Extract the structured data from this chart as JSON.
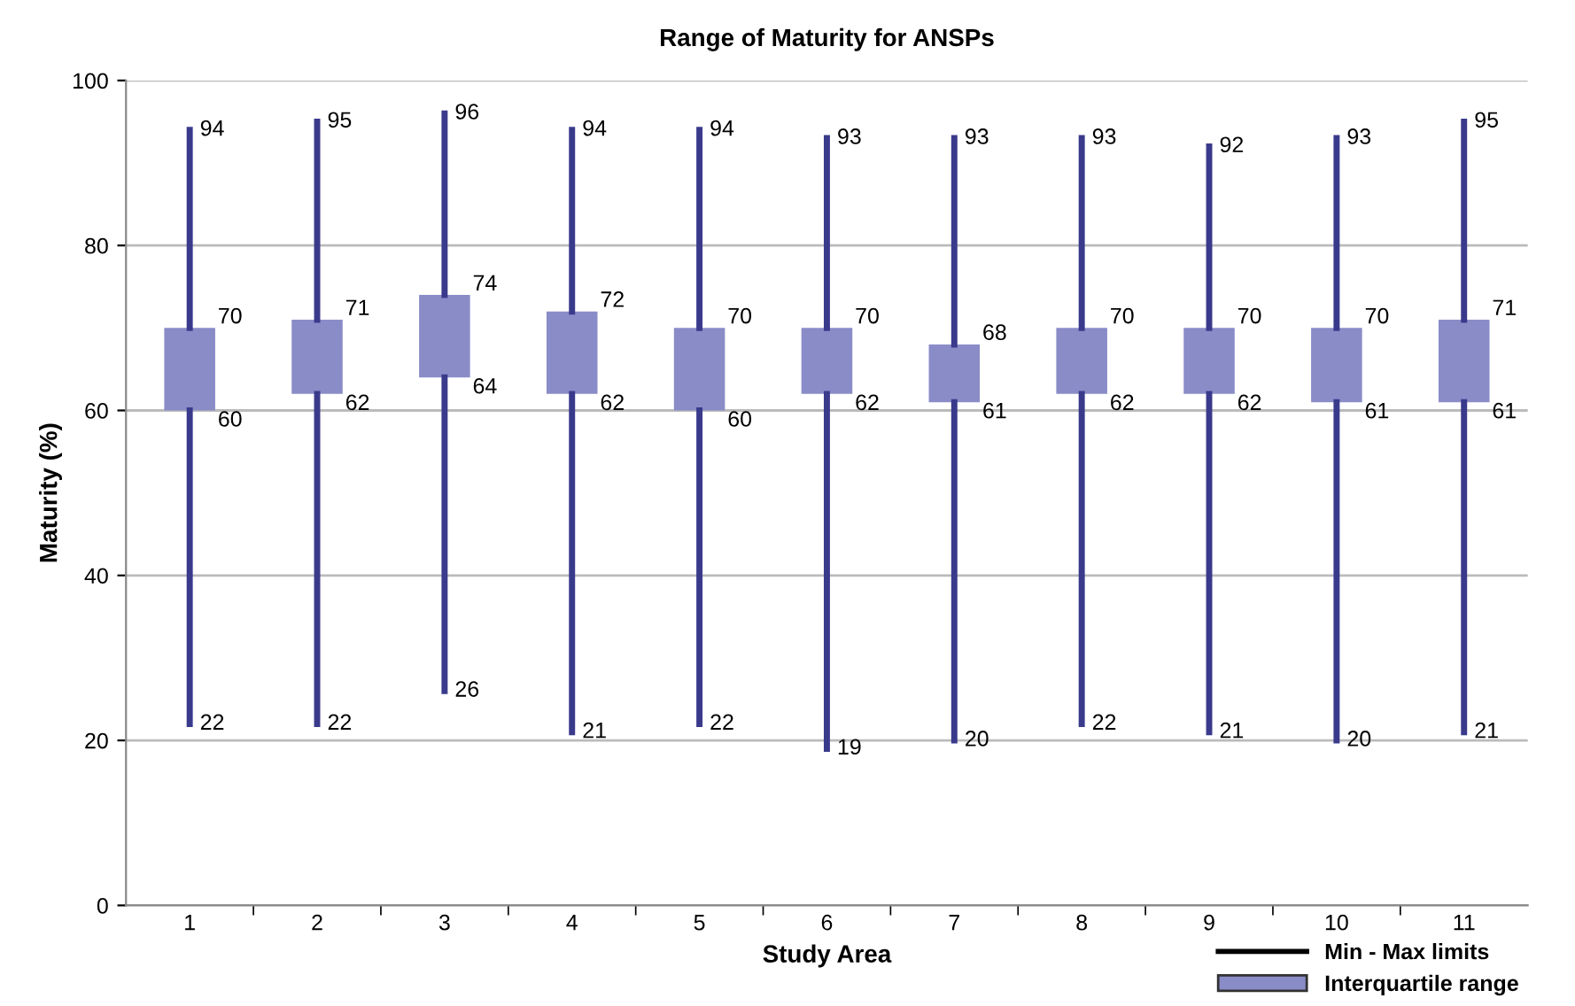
{
  "chart_data": {
    "type": "box",
    "title": "Range of Maturity for ANSPs",
    "xlabel": "Study Area",
    "ylabel": "Maturity (%)",
    "categories": [
      "1",
      "2",
      "3",
      "4",
      "5",
      "6",
      "7",
      "8",
      "9",
      "10",
      "11"
    ],
    "series": [
      {
        "name": "Interquartile range",
        "color": "#8a8cc8",
        "boxes": [
          {
            "low": 22,
            "q1": 60,
            "q3": 70,
            "high": 94
          },
          {
            "low": 22,
            "q1": 62,
            "q3": 71,
            "high": 95
          },
          {
            "low": 26,
            "q1": 64,
            "q3": 74,
            "high": 96
          },
          {
            "low": 21,
            "q1": 62,
            "q3": 72,
            "high": 94
          },
          {
            "low": 22,
            "q1": 60,
            "q3": 70,
            "high": 94
          },
          {
            "low": 19,
            "q1": 62,
            "q3": 70,
            "high": 93
          },
          {
            "low": 20,
            "q1": 61,
            "q3": 68,
            "high": 93
          },
          {
            "low": 22,
            "q1": 62,
            "q3": 70,
            "high": 93
          },
          {
            "low": 21,
            "q1": 62,
            "q3": 70,
            "high": 92
          },
          {
            "low": 20,
            "q1": 61,
            "q3": 70,
            "high": 93
          },
          {
            "low": 21,
            "q1": 61,
            "q3": 71,
            "high": 95
          }
        ]
      }
    ],
    "annotations": [
      "Min - Max limits",
      {
        "text": "94",
        "x": "1",
        "y": 94
      },
      {
        "text": "70",
        "x": "1",
        "y": 70
      },
      {
        "text": "60",
        "x": "1",
        "y": 60
      },
      {
        "text": "22",
        "x": "1",
        "y": 22
      },
      {
        "text": "95",
        "x": "2",
        "y": 95
      },
      {
        "text": "71",
        "x": "2",
        "y": 71
      },
      {
        "text": "62",
        "x": "2",
        "y": 62
      },
      {
        "text": "22",
        "x": "2",
        "y": 22
      },
      {
        "text": "96",
        "x": "3",
        "y": 96
      },
      {
        "text": "74",
        "x": "3",
        "y": 74
      },
      {
        "text": "64",
        "x": "3",
        "y": 64
      },
      {
        "text": "26",
        "x": "3",
        "y": 26
      },
      {
        "text": "94",
        "x": "4",
        "y": 94
      },
      {
        "text": "72",
        "x": "4",
        "y": 72
      },
      {
        "text": "62",
        "x": "4",
        "y": 62
      },
      {
        "text": "21",
        "x": "4",
        "y": 21
      },
      {
        "text": "94",
        "x": "5",
        "y": 94
      },
      {
        "text": "70",
        "x": "5",
        "y": 70
      },
      {
        "text": "60",
        "x": "5",
        "y": 60
      },
      {
        "text": "22",
        "x": "5",
        "y": 22
      },
      {
        "text": "93",
        "x": "6",
        "y": 93
      },
      {
        "text": "70",
        "x": "6",
        "y": 70
      },
      {
        "text": "62",
        "x": "6",
        "y": 62
      },
      {
        "text": "19",
        "x": "6",
        "y": 19
      },
      {
        "text": "93",
        "x": "7",
        "y": 93
      },
      {
        "text": "68",
        "x": "7",
        "y": 68
      },
      {
        "text": "61",
        "x": "7",
        "y": 61
      },
      {
        "text": "20",
        "x": "7",
        "y": 20
      },
      {
        "text": "93",
        "x": "8",
        "y": 93
      },
      {
        "text": "70",
        "x": "8",
        "y": 70
      },
      {
        "text": "62",
        "x": "8",
        "y": 62
      },
      {
        "text": "22",
        "x": "8",
        "y": 22
      },
      {
        "text": "92",
        "x": "9",
        "y": 92
      },
      {
        "text": "70",
        "x": "9",
        "y": 70
      },
      {
        "text": "62",
        "x": "9",
        "y": 62
      },
      {
        "text": "21",
        "x": "9",
        "y": 21
      },
      {
        "text": "93",
        "x": "10",
        "y": 93
      },
      {
        "text": "70",
        "x": "10",
        "y": 70
      },
      {
        "text": "61",
        "x": "10",
        "y": 61
      },
      {
        "text": "20",
        "x": "10",
        "y": 20
      },
      {
        "text": "95",
        "x": "11",
        "y": 95
      },
      {
        "text": "71",
        "x": "11",
        "y": 71
      },
      {
        "text": "61",
        "x": "11",
        "y": 61
      },
      {
        "text": "21",
        "x": "11",
        "y": 21
      }
    ],
    "ylim": [
      0,
      100
    ],
    "yticks": [
      0,
      20,
      40,
      60,
      80,
      100
    ],
    "grid": "y",
    "legend": "bottom right"
  }
}
